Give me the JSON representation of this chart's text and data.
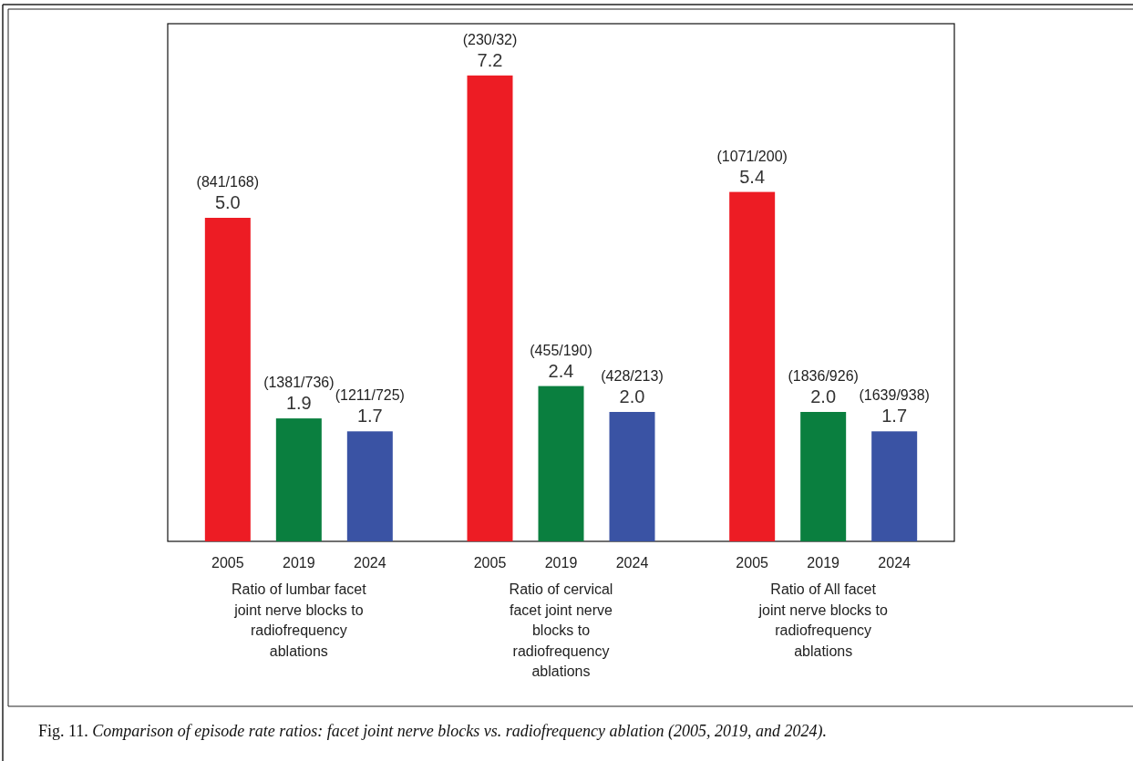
{
  "chart_data": {
    "type": "bar",
    "categories": [
      "Ratio of lumbar facet joint nerve blocks to radiofrequency ablations",
      "Ratio of cervical facet joint nerve blocks to radiofrequency ablations",
      "Ratio of All facet joint nerve blocks to radiofrequency ablations"
    ],
    "series": [
      {
        "name": "2005",
        "color": "#ed1c24",
        "values": [
          5.0,
          7.2,
          5.4
        ],
        "value_labels": [
          "5.0 (841/168)",
          "7.2 (230/32)",
          "5.4 (1071/200)"
        ]
      },
      {
        "name": "2019",
        "color": "#0a7f3f",
        "values": [
          1.9,
          2.4,
          2.0
        ],
        "value_labels": [
          "1.9 (1381/736)",
          "2.4 (455/190)",
          "2.0 (1836/926)"
        ]
      },
      {
        "name": "2024",
        "color": "#3a53a4",
        "values": [
          1.7,
          2.0,
          1.7
        ],
        "value_labels": [
          "1.7 (1211/725)",
          "2.0 (428/213)",
          "1.7 (1639/938)"
        ]
      }
    ],
    "ylim": [
      0,
      8
    ],
    "annotations": [
      "Fig. 11. Comparison of episode rate ratios: facet joint nerve blocks vs. radiofrequency ablation (2005, 2019, and 2024)."
    ]
  }
}
